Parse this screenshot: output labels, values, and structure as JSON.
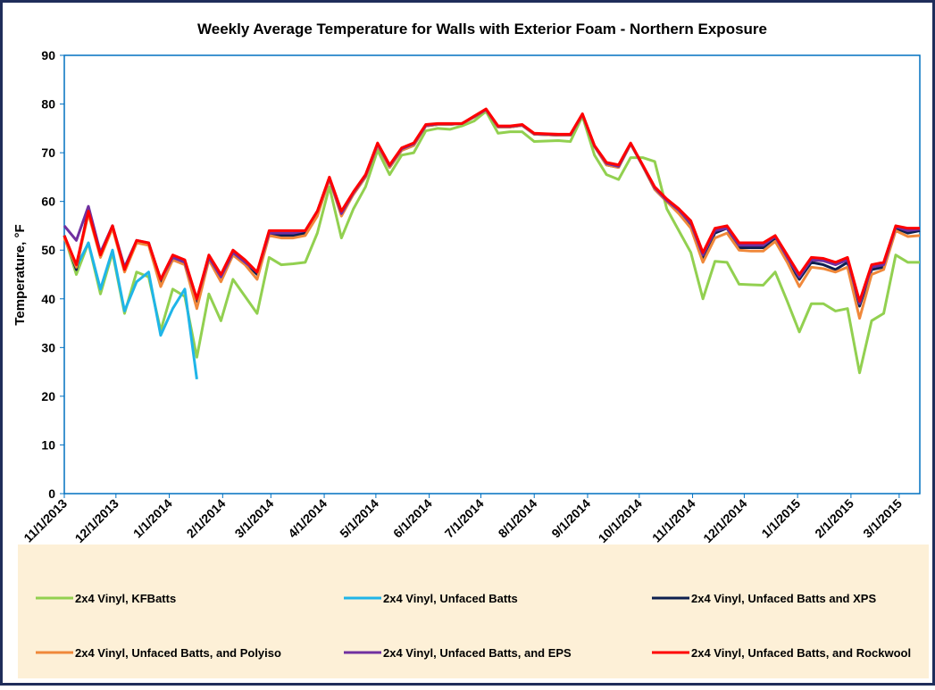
{
  "chart_data": {
    "type": "line",
    "title": "Weekly Average Temperature for Walls with Exterior Foam - Northern Exposure",
    "y_label": "Temperature, °F",
    "x": [
      "11/1/2013",
      "11/8/2013",
      "11/15/2013",
      "11/22/2013",
      "11/29/2013",
      "12/6/2013",
      "12/13/2013",
      "12/20/2013",
      "12/27/2013",
      "1/3/2014",
      "1/10/2014",
      "1/17/2014",
      "1/24/2014",
      "1/31/2014",
      "2/7/2014",
      "2/14/2014",
      "2/21/2014",
      "2/28/2014",
      "3/7/2014",
      "3/14/2014",
      "3/21/2014",
      "3/28/2014",
      "4/4/2014",
      "4/11/2014",
      "4/18/2014",
      "4/25/2014",
      "5/2/2014",
      "5/9/2014",
      "5/16/2014",
      "5/23/2014",
      "5/30/2014",
      "6/6/2014",
      "6/13/2014",
      "6/20/2014",
      "6/27/2014",
      "7/4/2014",
      "7/11/2014",
      "7/18/2014",
      "7/25/2014",
      "8/1/2014",
      "8/8/2014",
      "8/15/2014",
      "8/22/2014",
      "8/29/2014",
      "9/5/2014",
      "9/12/2014",
      "9/19/2014",
      "9/26/2014",
      "10/3/2014",
      "10/10/2014",
      "10/17/2014",
      "10/24/2014",
      "10/31/2014",
      "11/7/2014",
      "11/14/2014",
      "11/21/2014",
      "11/28/2014",
      "12/5/2014",
      "12/12/2014",
      "12/19/2014",
      "12/26/2014",
      "1/2/2015",
      "1/9/2015",
      "1/16/2015",
      "1/23/2015",
      "1/30/2015",
      "2/6/2015",
      "2/13/2015",
      "2/20/2015",
      "2/27/2015",
      "3/6/2015",
      "3/13/2015"
    ],
    "xlim": [
      "11/1/2013",
      "3/13/2015"
    ],
    "xticks": [
      "11/1/2013",
      "12/1/2013",
      "1/1/2014",
      "2/1/2014",
      "3/1/2014",
      "4/1/2014",
      "5/1/2014",
      "6/1/2014",
      "7/1/2014",
      "8/1/2014",
      "9/1/2014",
      "10/1/2014",
      "11/1/2014",
      "12/1/2014",
      "1/1/2015",
      "2/1/2015",
      "3/1/2015"
    ],
    "ylim": [
      0,
      90
    ],
    "yticks": [
      0,
      10,
      20,
      30,
      40,
      50,
      60,
      70,
      80,
      90
    ],
    "legend": "bottom",
    "series": [
      {
        "name": "2x4 Vinyl, KFBatts",
        "color": "#92d050",
        "values": [
          53,
          45,
          51.5,
          41,
          49.5,
          37,
          45.5,
          44.5,
          33.5,
          42,
          40.5,
          28,
          41,
          35.5,
          44,
          40.5,
          37,
          48.5,
          47,
          47.2,
          47.5,
          53.5,
          63,
          52.5,
          58.5,
          63,
          70.5,
          65.5,
          69.5,
          70,
          74.5,
          75,
          74.8,
          75.5,
          76.5,
          78.5,
          74,
          74.3,
          74.3,
          72.3,
          72.4,
          72.5,
          72.3,
          77.5,
          69.5,
          65.5,
          64.5,
          69,
          69,
          68.2,
          58.5,
          54,
          49.5,
          40,
          47.7,
          47.5,
          43,
          42.9,
          42.8,
          45.5,
          39.5,
          33.2,
          39,
          39,
          37.5,
          38,
          24.8,
          35.5,
          37,
          49,
          47.5,
          47.5
        ]
      },
      {
        "name": "2x4 Vinyl, Unfaced Batts",
        "color": "#1fb5e8",
        "values": [
          53,
          46.5,
          51.5,
          42,
          50,
          37.5,
          43.5,
          45.5,
          32.5,
          38,
          42,
          23.5,
          null,
          null,
          null,
          null,
          null,
          null,
          null,
          null,
          null,
          null,
          null,
          null,
          null,
          null,
          null,
          null,
          null,
          null,
          null,
          null,
          null,
          null,
          null,
          null,
          null,
          null,
          null,
          null,
          null,
          null,
          null,
          null,
          null,
          null,
          null,
          null,
          null,
          null,
          null,
          null,
          null,
          null,
          null,
          null,
          null,
          null,
          null,
          null,
          null,
          null,
          null,
          null,
          null,
          null,
          null,
          null,
          null,
          null,
          null,
          null
        ]
      },
      {
        "name": "2x4 Vinyl, Unfaced Batts and XPS",
        "color": "#0d1f4f",
        "values": [
          53,
          46,
          58.5,
          49,
          55,
          46,
          51.5,
          51.5,
          43.5,
          48.5,
          47.5,
          39.5,
          48.5,
          44.5,
          49.5,
          47.5,
          45,
          53.5,
          53,
          53,
          53.5,
          57.5,
          64.5,
          57.5,
          61.5,
          65,
          71.5,
          67,
          70.5,
          71.5,
          75.5,
          75.8,
          75.8,
          76,
          77.3,
          78.8,
          75.3,
          75.3,
          75.6,
          73.8,
          73.7,
          73.6,
          73.6,
          77.8,
          71.3,
          67.5,
          67,
          71.8,
          67.3,
          62.5,
          60,
          58,
          55,
          48.5,
          53.5,
          54.5,
          50.5,
          50.5,
          50.5,
          52.5,
          48,
          44,
          47.5,
          47,
          46,
          47.5,
          38.5,
          46,
          46.5,
          54.5,
          53.5,
          54
        ]
      },
      {
        "name": "2x4 Vinyl, Unfaced Batts, and Polyiso",
        "color": "#f0883a",
        "values": [
          52.5,
          46.5,
          57.5,
          48.5,
          54.5,
          45.5,
          51.5,
          51,
          42.5,
          48,
          47,
          38,
          48,
          43.5,
          49,
          47,
          44,
          53,
          52.5,
          52.5,
          53,
          57,
          64.5,
          57,
          61.5,
          65,
          71.5,
          67,
          70.5,
          71.5,
          75.5,
          75.8,
          75.8,
          76,
          77.3,
          78.8,
          75.3,
          75.3,
          75.6,
          73.8,
          73.7,
          73.6,
          73.6,
          77.8,
          71.3,
          67.5,
          67,
          71.8,
          67.3,
          62.5,
          60,
          57.5,
          54.5,
          47.5,
          52.5,
          53.5,
          50,
          49.8,
          49.8,
          51.8,
          47.5,
          42.5,
          46.5,
          46.2,
          45.5,
          46.5,
          36,
          45,
          46,
          54,
          52.8,
          53
        ]
      },
      {
        "name": "2x4 Vinyl, Unfaced Batts, and EPS",
        "color": "#7030a0",
        "values": [
          55,
          52,
          59,
          49.5,
          55,
          46.5,
          52,
          51.5,
          44,
          48.5,
          47.5,
          40,
          48.5,
          44.5,
          49.5,
          47.5,
          45.5,
          53.5,
          53.5,
          53.5,
          54,
          58,
          64.8,
          57.5,
          61.8,
          65.3,
          71.8,
          67.3,
          70.8,
          71.8,
          75.6,
          75.9,
          75.9,
          76,
          77.4,
          78.9,
          75.4,
          75.4,
          75.7,
          73.9,
          73.8,
          73.7,
          73.7,
          77.9,
          71.4,
          67.8,
          67.2,
          71.9,
          67.4,
          62.8,
          60.2,
          58.2,
          55.5,
          49,
          54,
          54.5,
          51,
          51,
          51,
          52.8,
          48.5,
          44.5,
          48,
          47.8,
          47,
          48,
          39,
          46.5,
          47,
          54.8,
          54,
          54.3
        ]
      },
      {
        "name": "2x4 Vinyl, Unfaced Batts, and Rockwool",
        "color": "#ff0000",
        "values": [
          53,
          47,
          58,
          49,
          55,
          46,
          52,
          51.5,
          44,
          49,
          48,
          40,
          49,
          45,
          50,
          48,
          45.5,
          54,
          54,
          54,
          54,
          58,
          65,
          58,
          62,
          65.5,
          72,
          67.5,
          71,
          72,
          75.8,
          76,
          76,
          76,
          77.5,
          79,
          75.5,
          75.5,
          75.8,
          74,
          73.9,
          73.8,
          73.8,
          78,
          71.5,
          68,
          67.5,
          72,
          67.5,
          63,
          60.5,
          58.5,
          56,
          49.5,
          54.5,
          55,
          51.5,
          51.5,
          51.5,
          53,
          49,
          45,
          48.5,
          48.3,
          47.5,
          48.5,
          39.5,
          47,
          47.5,
          55,
          54.5,
          54.5
        ]
      }
    ]
  }
}
